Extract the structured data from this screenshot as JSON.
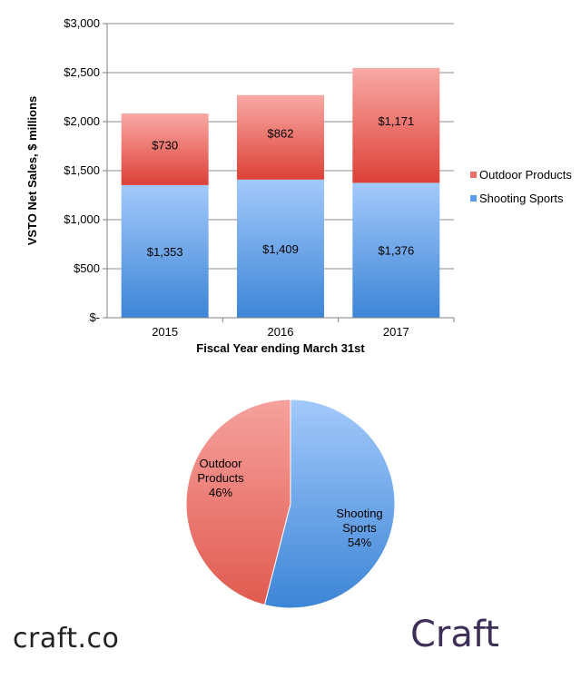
{
  "chart_data": [
    {
      "type": "bar",
      "stacked": true,
      "categories": [
        "2015",
        "2016",
        "2017"
      ],
      "series": [
        {
          "name": "Shooting Sports",
          "values": [
            1353,
            1409,
            1376
          ],
          "color": "#6aa6ee",
          "labels": [
            "$1,353",
            "$1,409",
            "$1,376"
          ]
        },
        {
          "name": "Outdoor Products",
          "values": [
            730,
            862,
            1171
          ],
          "color": "#f07e7a",
          "labels": [
            "$730",
            "$862",
            "$1,171"
          ]
        }
      ],
      "xlabel": "Fiscal Year ending March 31st",
      "ylabel": "VSTO Net Sales, $ millions",
      "ylim": [
        0,
        3000
      ],
      "ytick_values": [
        0,
        500,
        1000,
        1500,
        2000,
        2500,
        3000
      ],
      "ytick_labels": [
        "$-",
        "$500",
        "$1,000",
        "$1,500",
        "$2,000",
        "$2,500",
        "$3,000"
      ],
      "grid": true,
      "legend_position": "right"
    },
    {
      "type": "pie",
      "slices": [
        {
          "name": "Shooting Sports",
          "value": 54,
          "label": [
            "Shooting",
            "Sports",
            "54%"
          ],
          "color": "#6aa6ee"
        },
        {
          "name": "Outdoor Products",
          "value": 46,
          "label": [
            "Outdoor",
            "Products",
            "46%"
          ],
          "color": "#f07e7a"
        }
      ]
    }
  ],
  "footer": {
    "left_text": "craft.co",
    "right_logo": "Craft"
  }
}
